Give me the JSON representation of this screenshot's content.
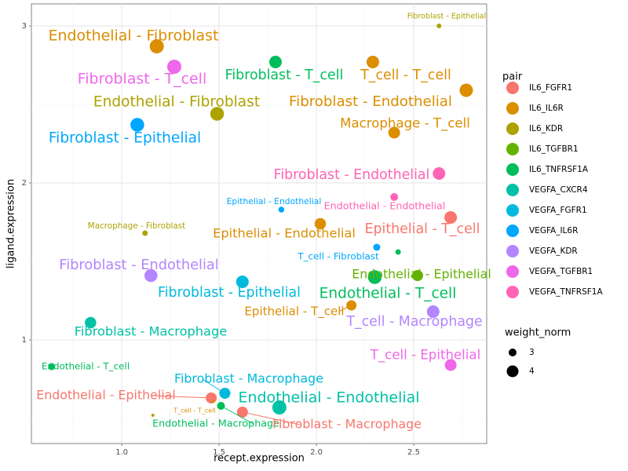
{
  "chart_data": {
    "type": "scatter",
    "x_label": "recept.expression",
    "y_label": "ligand.expression",
    "xlim": [
      0.536,
      2.875
    ],
    "ylim": [
      0.34,
      3.14
    ],
    "xticks": [
      {
        "value": 1,
        "label": "1.0"
      },
      1.5,
      {
        "value": 2,
        "label": "2.0"
      },
      2.5
    ],
    "yticks": [
      1,
      2,
      3
    ],
    "grid": true,
    "color_legend": {
      "title": "pair",
      "items": [
        {
          "name": "IL6_FGFR1",
          "color": "#F8766D"
        },
        {
          "name": "IL6_IL6R",
          "color": "#DB8E00"
        },
        {
          "name": "IL6_KDR",
          "color": "#AEA200"
        },
        {
          "name": "IL6_TGFBR1",
          "color": "#64B200"
        },
        {
          "name": "IL6_TNFRSF1A",
          "color": "#00BD5C"
        },
        {
          "name": "VEGFA_CXCR4",
          "color": "#00C1A7"
        },
        {
          "name": "VEGFA_FGFR1",
          "color": "#00BADE"
        },
        {
          "name": "VEGFA_IL6R",
          "color": "#00A6FF"
        },
        {
          "name": "VEGFA_KDR",
          "color": "#B385FF"
        },
        {
          "name": "VEGFA_TGFBR1",
          "color": "#EF67EB"
        },
        {
          "name": "VEGFA_TNFRSF1A",
          "color": "#FF63B6"
        }
      ]
    },
    "size_legend": {
      "title": "weight_norm",
      "values": [
        3,
        4
      ]
    },
    "points": [
      {
        "x": 2.63,
        "y": 3.0,
        "weight_norm": 2.2,
        "pair": "IL6_KDR",
        "label": "Fibroblast - Epithelial"
      },
      {
        "x": 1.18,
        "y": 2.87,
        "weight_norm": 4.6,
        "pair": "IL6_IL6R",
        "label": "Endothelial - Fibroblast"
      },
      {
        "x": 1.27,
        "y": 2.74,
        "weight_norm": 4.6,
        "pair": "VEGFA_TGFBR1",
        "label": "Fibroblast - T_cell"
      },
      {
        "x": 1.79,
        "y": 2.77,
        "weight_norm": 4.2,
        "pair": "IL6_TNFRSF1A",
        "label": "Fibroblast - T_cell"
      },
      {
        "x": 2.29,
        "y": 2.77,
        "weight_norm": 4.2,
        "pair": "IL6_IL6R",
        "label": "T_cell - T_cell"
      },
      {
        "x": 2.77,
        "y": 2.59,
        "weight_norm": 4.4,
        "pair": "IL6_IL6R",
        "label": "Fibroblast - Endothelial"
      },
      {
        "x": 1.49,
        "y": 2.44,
        "weight_norm": 4.5,
        "pair": "IL6_KDR",
        "label": "Endothelial - Fibroblast"
      },
      {
        "x": 1.08,
        "y": 2.37,
        "weight_norm": 4.5,
        "pair": "VEGFA_IL6R",
        "label": "Fibroblast - Epithelial"
      },
      {
        "x": 2.4,
        "y": 2.32,
        "weight_norm": 4.0,
        "pair": "IL6_IL6R",
        "label": "Macrophage - T_cell"
      },
      {
        "x": 2.63,
        "y": 2.06,
        "weight_norm": 4.2,
        "pair": "VEGFA_TNFRSF1A",
        "label": "Fibroblast - Endothelial"
      },
      {
        "x": 2.4,
        "y": 1.91,
        "weight_norm": 3.0,
        "pair": "VEGFA_TNFRSF1A",
        "label": "Endothelial - Endothelial"
      },
      {
        "x": 1.82,
        "y": 1.83,
        "weight_norm": 2.5,
        "pair": "VEGFA_IL6R",
        "label": "Epithelial - Endothelial"
      },
      {
        "x": 2.69,
        "y": 1.78,
        "weight_norm": 4.2,
        "pair": "IL6_FGFR1",
        "label": "Epithelial - T_cell"
      },
      {
        "x": 2.02,
        "y": 1.74,
        "weight_norm": 3.9,
        "pair": "IL6_IL6R",
        "label": "Epithelial - Endothelial"
      },
      {
        "x": 1.12,
        "y": 1.68,
        "weight_norm": 2.4,
        "pair": "IL6_KDR",
        "label": "Macrophage - Fibroblast"
      },
      {
        "x": 2.31,
        "y": 1.59,
        "weight_norm": 2.8,
        "pair": "VEGFA_IL6R",
        "label": "T_cell - Fibroblast"
      },
      {
        "x": 2.42,
        "y": 1.56,
        "weight_norm": 2.4,
        "pair": "IL6_TNFRSF1A"
      },
      {
        "x": 2.52,
        "y": 1.41,
        "weight_norm": 3.8,
        "pair": "IL6_TGFBR1",
        "label": "Endothelial - Epithelial"
      },
      {
        "x": 1.15,
        "y": 1.41,
        "weight_norm": 4.3,
        "pair": "VEGFA_KDR",
        "label": "Fibroblast - Endothelial"
      },
      {
        "x": 1.62,
        "y": 1.37,
        "weight_norm": 4.2,
        "pair": "VEGFA_FGFR1",
        "label": "Fibroblast - Epithelial"
      },
      {
        "x": 2.3,
        "y": 1.4,
        "weight_norm": 4.5,
        "pair": "IL6_TNFRSF1A",
        "label": "Endothelial - T_cell"
      },
      {
        "x": 2.18,
        "y": 1.22,
        "weight_norm": 3.6,
        "pair": "IL6_IL6R",
        "label": "Epithelial - T_cell"
      },
      {
        "x": 2.6,
        "y": 1.18,
        "weight_norm": 4.2,
        "pair": "VEGFA_KDR",
        "label": "T_cell - Macrophage"
      },
      {
        "x": 0.84,
        "y": 1.11,
        "weight_norm": 3.9,
        "pair": "VEGFA_CXCR4",
        "label": "Fibroblast - Macrophage"
      },
      {
        "x": 0.64,
        "y": 0.83,
        "weight_norm": 2.8,
        "pair": "IL6_TNFRSF1A",
        "label": "Endothelial - T_cell"
      },
      {
        "x": 2.69,
        "y": 0.84,
        "weight_norm": 4.0,
        "pair": "VEGFA_TGFBR1",
        "label": "T_cell - Epithelial"
      },
      {
        "x": 1.53,
        "y": 0.66,
        "weight_norm": 3.8,
        "pair": "VEGFA_FGFR1",
        "label": "Fibroblast - Macrophage"
      },
      {
        "x": 1.46,
        "y": 0.63,
        "weight_norm": 3.8,
        "pair": "IL6_FGFR1",
        "label": "Endothelial - Epithelial"
      },
      {
        "x": 1.47,
        "y": 0.61,
        "weight_norm": 1.8,
        "pair": "IL6_IL6R",
        "label": "T_cell - T_cell"
      },
      {
        "x": 1.16,
        "y": 0.52,
        "weight_norm": 1.8,
        "pair": "IL6_KDR"
      },
      {
        "x": 1.51,
        "y": 0.58,
        "weight_norm": 3.0,
        "pair": "IL6_TNFRSF1A",
        "label": "Endothelial - Macrophage"
      },
      {
        "x": 1.81,
        "y": 0.57,
        "weight_norm": 4.6,
        "pair": "VEGFA_CXCR4",
        "label": "Endothelial - Endothelial"
      },
      {
        "x": 1.62,
        "y": 0.54,
        "weight_norm": 3.8,
        "pair": "IL6_FGFR1",
        "label": "Fibroblast - Macrophage"
      }
    ]
  }
}
